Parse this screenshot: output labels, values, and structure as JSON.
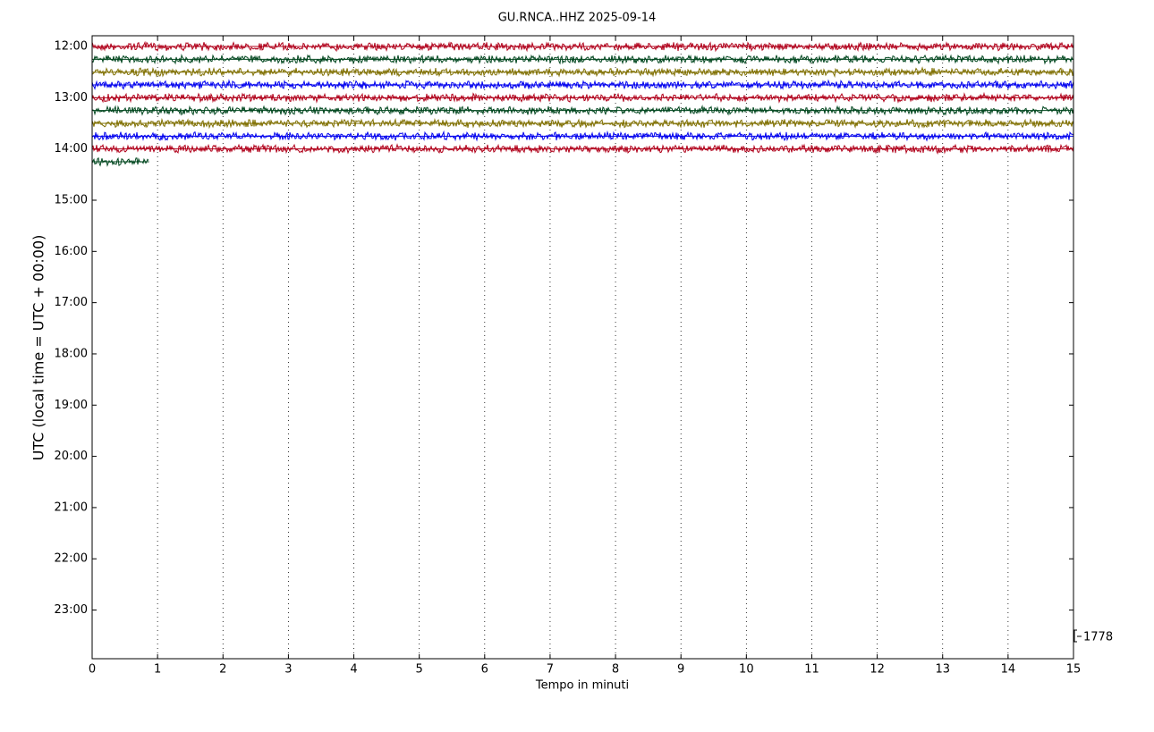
{
  "chart_data": {
    "type": "helicorder",
    "title": "GU.RNCA..HHZ 2025-09-14",
    "x_label": "Tempo in minuti",
    "y_label": "UTC (local time = UTC + 00:00)",
    "xlim": [
      0,
      15
    ],
    "xticks": [
      0,
      1,
      2,
      3,
      4,
      5,
      6,
      7,
      8,
      9,
      10,
      11,
      12,
      13,
      14,
      15
    ],
    "ylim": [
      23.95,
      11.79
    ],
    "yticks": [
      {
        "value": 12,
        "label": "12:00"
      },
      {
        "value": 13,
        "label": "13:00"
      },
      {
        "value": 14,
        "label": "14:00"
      },
      {
        "value": 15,
        "label": "15:00"
      },
      {
        "value": 16,
        "label": "16:00"
      },
      {
        "value": 17,
        "label": "17:00"
      },
      {
        "value": 18,
        "label": "18:00"
      },
      {
        "value": 19,
        "label": "19:00"
      },
      {
        "value": 20,
        "label": "20:00"
      },
      {
        "value": 21,
        "label": "21:00"
      },
      {
        "value": 22,
        "label": "22:00"
      },
      {
        "value": 23,
        "label": "23:00"
      }
    ],
    "grid": true,
    "scale": 1778,
    "series": [
      {
        "color": "#b0001a",
        "x": [
          0,
          15
        ],
        "values": [
          12,
          12
        ]
      },
      {
        "color": "#00461e",
        "x": [
          0,
          15
        ],
        "values": [
          12.25,
          12.25
        ]
      },
      {
        "color": "#7f6f00",
        "x": [
          0,
          15
        ],
        "values": [
          12.5,
          12.5
        ]
      },
      {
        "color": "#0000ee",
        "x": [
          0,
          15
        ],
        "values": [
          12.75,
          12.75
        ]
      },
      {
        "color": "#b0001a",
        "x": [
          0,
          15
        ],
        "values": [
          13,
          13
        ]
      },
      {
        "color": "#00461e",
        "x": [
          0,
          15
        ],
        "values": [
          13.25,
          13.25
        ]
      },
      {
        "color": "#7f6f00",
        "x": [
          0,
          15
        ],
        "values": [
          13.5,
          13.5
        ]
      },
      {
        "color": "#0000ee",
        "x": [
          0,
          15
        ],
        "values": [
          13.75,
          13.75
        ]
      },
      {
        "color": "#b0001a",
        "x": [
          0,
          15
        ],
        "values": [
          14,
          14
        ]
      },
      {
        "color": "#00461e",
        "x": [
          0,
          0.87
        ],
        "values": [
          14.25,
          14.25
        ]
      }
    ]
  }
}
